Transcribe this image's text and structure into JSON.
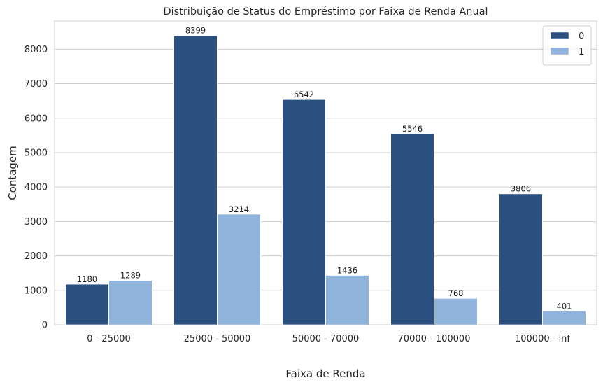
{
  "chart_data": {
    "type": "bar",
    "title": "Distribuição de Status do Empréstimo por Faixa de Renda Anual",
    "xlabel": "Faixa de Renda",
    "ylabel": "Contagem",
    "categories": [
      "0 - 25000",
      "25000 - 50000",
      "50000 - 70000",
      "70000 - 100000",
      "100000 - inf"
    ],
    "series": [
      {
        "name": "0",
        "values": [
          1180,
          8399,
          6542,
          5546,
          3806
        ],
        "color": "#2b5080"
      },
      {
        "name": "1",
        "values": [
          1289,
          3214,
          1436,
          768,
          401
        ],
        "color": "#8fb3da"
      }
    ],
    "ylim": [
      0,
      8820
    ],
    "yticks": [
      0,
      1000,
      2000,
      3000,
      4000,
      5000,
      6000,
      7000,
      8000
    ],
    "grid": true,
    "legend_position": "top-right",
    "data_labels": true
  }
}
